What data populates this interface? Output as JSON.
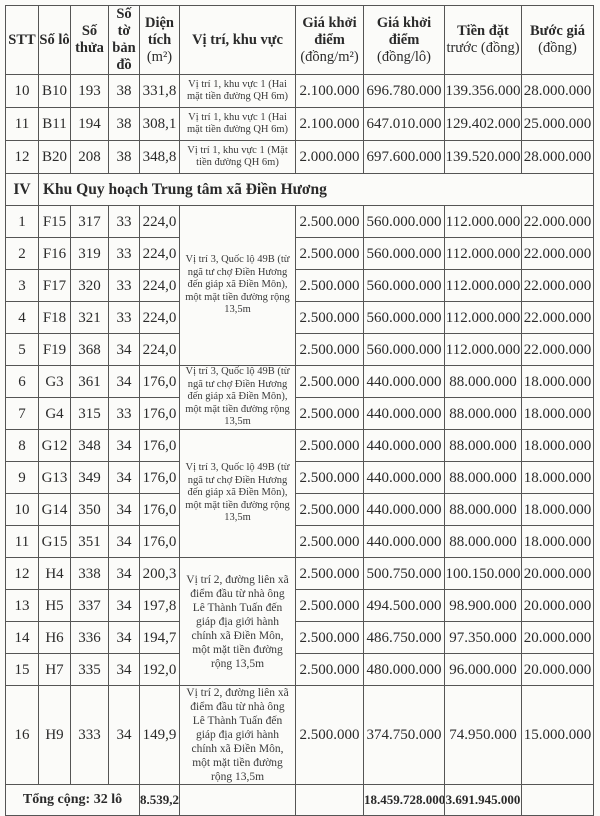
{
  "headers": {
    "stt": "STT",
    "so_lo": "Số lô",
    "so_thua": "Số thửa",
    "so_to_ban_do": "Số tờ bản đồ",
    "dien_tich": "Diện tích",
    "dien_tich_unit": "(m²)",
    "vi_tri": "Vị trí, khu vực",
    "gia_m2": "Giá khởi điểm",
    "gia_m2_unit": "(đồng/m²)",
    "gia_lo": "Giá khởi điểm",
    "gia_lo_unit": "(đồng/lô)",
    "tien_dat_truoc": "Tiền đặt",
    "tien_dat_truoc_unit": "trước (đồng)",
    "buoc_gia": "Bước giá",
    "buoc_gia_unit": "(đồng)"
  },
  "rows_top": [
    {
      "stt": "10",
      "lo": "B10",
      "thua": "193",
      "to": "38",
      "dt": "331,8",
      "vitri": "Vị trí 1, khu vực 1 (Hai mặt tiền đường QH 6m)",
      "gia_m2": "2.100.000",
      "gia_lo": "696.780.000",
      "tien": "139.356.000",
      "buoc": "28.000.000"
    },
    {
      "stt": "11",
      "lo": "B11",
      "thua": "194",
      "to": "38",
      "dt": "308,1",
      "vitri": "Vị trí 1, khu vực 1 (Hai mặt tiền đường QH 6m)",
      "gia_m2": "2.100.000",
      "gia_lo": "647.010.000",
      "tien": "129.402.000",
      "buoc": "25.000.000"
    },
    {
      "stt": "12",
      "lo": "B20",
      "thua": "208",
      "to": "38",
      "dt": "348,8",
      "vitri": "Vị trí 1, khu vực 1 (Mặt tiền đường QH 6m)",
      "gia_m2": "2.000.000",
      "gia_lo": "697.600.000",
      "tien": "139.520.000",
      "buoc": "28.000.000"
    }
  ],
  "section": {
    "number": "IV",
    "title": "Khu Quy hoạch Trung tâm xã Điền Hương"
  },
  "locations": {
    "ql49b": "Vị trí 3, Quốc lộ 49B (từ ngã tư chợ Điền Hương đến giáp xã Điền Môn), một mặt tiền đường rộng 13,5m",
    "lienxa": "Vị trí 2, đường liên xã điểm đầu từ nhà ông Lê Thành Tuấn đến giáp địa giới hành chính xã Điền Môn, một mặt tiền đường rộng 13,5m"
  },
  "rows": [
    {
      "stt": "1",
      "lo": "F15",
      "thua": "317",
      "to": "33",
      "dt": "224,0",
      "gia_m2": "2.500.000",
      "gia_lo": "560.000.000",
      "tien": "112.000.000",
      "buoc": "22.000.000"
    },
    {
      "stt": "2",
      "lo": "F16",
      "thua": "319",
      "to": "33",
      "dt": "224,0",
      "gia_m2": "2.500.000",
      "gia_lo": "560.000.000",
      "tien": "112.000.000",
      "buoc": "22.000.000"
    },
    {
      "stt": "3",
      "lo": "F17",
      "thua": "320",
      "to": "33",
      "dt": "224,0",
      "gia_m2": "2.500.000",
      "gia_lo": "560.000.000",
      "tien": "112.000.000",
      "buoc": "22.000.000"
    },
    {
      "stt": "4",
      "lo": "F18",
      "thua": "321",
      "to": "33",
      "dt": "224,0",
      "gia_m2": "2.500.000",
      "gia_lo": "560.000.000",
      "tien": "112.000.000",
      "buoc": "22.000.000"
    },
    {
      "stt": "5",
      "lo": "F19",
      "thua": "368",
      "to": "34",
      "dt": "224,0",
      "gia_m2": "2.500.000",
      "gia_lo": "560.000.000",
      "tien": "112.000.000",
      "buoc": "22.000.000"
    },
    {
      "stt": "6",
      "lo": "G3",
      "thua": "361",
      "to": "34",
      "dt": "176,0",
      "gia_m2": "2.500.000",
      "gia_lo": "440.000.000",
      "tien": "88.000.000",
      "buoc": "18.000.000"
    },
    {
      "stt": "7",
      "lo": "G4",
      "thua": "315",
      "to": "33",
      "dt": "176,0",
      "gia_m2": "2.500.000",
      "gia_lo": "440.000.000",
      "tien": "88.000.000",
      "buoc": "18.000.000"
    },
    {
      "stt": "8",
      "lo": "G12",
      "thua": "348",
      "to": "34",
      "dt": "176,0",
      "gia_m2": "2.500.000",
      "gia_lo": "440.000.000",
      "tien": "88.000.000",
      "buoc": "18.000.000"
    },
    {
      "stt": "9",
      "lo": "G13",
      "thua": "349",
      "to": "34",
      "dt": "176,0",
      "gia_m2": "2.500.000",
      "gia_lo": "440.000.000",
      "tien": "88.000.000",
      "buoc": "18.000.000"
    },
    {
      "stt": "10",
      "lo": "G14",
      "thua": "350",
      "to": "34",
      "dt": "176,0",
      "gia_m2": "2.500.000",
      "gia_lo": "440.000.000",
      "tien": "88.000.000",
      "buoc": "18.000.000"
    },
    {
      "stt": "11",
      "lo": "G15",
      "thua": "351",
      "to": "34",
      "dt": "176,0",
      "gia_m2": "2.500.000",
      "gia_lo": "440.000.000",
      "tien": "88.000.000",
      "buoc": "18.000.000"
    },
    {
      "stt": "12",
      "lo": "H4",
      "thua": "338",
      "to": "34",
      "dt": "200,3",
      "gia_m2": "2.500.000",
      "gia_lo": "500.750.000",
      "tien": "100.150.000",
      "buoc": "20.000.000"
    },
    {
      "stt": "13",
      "lo": "H5",
      "thua": "337",
      "to": "34",
      "dt": "197,8",
      "gia_m2": "2.500.000",
      "gia_lo": "494.500.000",
      "tien": "98.900.000",
      "buoc": "20.000.000"
    },
    {
      "stt": "14",
      "lo": "H6",
      "thua": "336",
      "to": "34",
      "dt": "194,7",
      "gia_m2": "2.500.000",
      "gia_lo": "486.750.000",
      "tien": "97.350.000",
      "buoc": "20.000.000"
    },
    {
      "stt": "15",
      "lo": "H7",
      "thua": "335",
      "to": "34",
      "dt": "192,0",
      "gia_m2": "2.500.000",
      "gia_lo": "480.000.000",
      "tien": "96.000.000",
      "buoc": "20.000.000"
    },
    {
      "stt": "16",
      "lo": "H9",
      "thua": "333",
      "to": "34",
      "dt": "149,9",
      "gia_m2": "2.500.000",
      "gia_lo": "374.750.000",
      "tien": "74.950.000",
      "buoc": "15.000.000"
    }
  ],
  "total": {
    "label": "Tổng cộng: 32 lô",
    "dt": "8.539,2",
    "gia_lo": "18.459.728.000",
    "tien": "3.691.945.000"
  }
}
